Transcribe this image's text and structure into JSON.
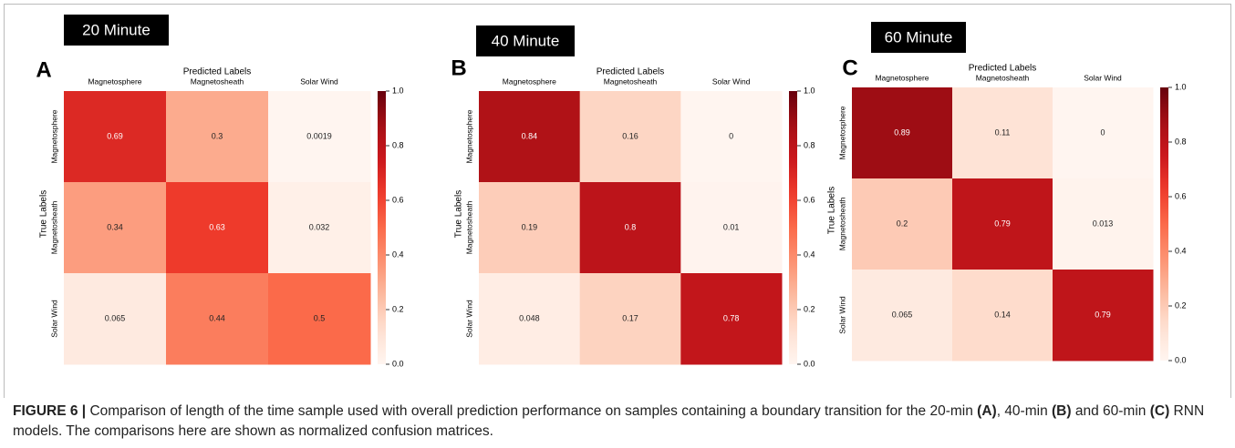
{
  "chart_data": [
    {
      "type": "heatmap",
      "panel": "A",
      "title": "20 Minute",
      "x_label": "Predicted Labels",
      "y_label": "True Labels",
      "x_categories": [
        "Magnetosphere",
        "Magnetosheath",
        "Solar Wind"
      ],
      "y_categories": [
        "Magnetosphere",
        "Magnetosheath",
        "Solar Wind"
      ],
      "values": [
        [
          0.69,
          0.3,
          0.0019
        ],
        [
          0.34,
          0.63,
          0.032
        ],
        [
          0.065,
          0.44,
          0.5
        ]
      ],
      "colormap": "Reds",
      "clim": [
        0,
        1
      ],
      "cticks": [
        {
          "value": 0,
          "label": "0.0"
        },
        0.2,
        0.4,
        0.6,
        0.8,
        {
          "value": 1,
          "label": "1.0"
        }
      ]
    },
    {
      "type": "heatmap",
      "panel": "B",
      "title": "40 Minute",
      "x_label": "Predicted Labels",
      "y_label": "True Labels",
      "x_categories": [
        "Magnetosphere",
        "Magnetosheath",
        "Solar Wind"
      ],
      "y_categories": [
        "Magnetosphere",
        "Magnetosheath",
        "Solar Wind"
      ],
      "values": [
        [
          0.84,
          0.16,
          0
        ],
        [
          0.19,
          0.8,
          0.01
        ],
        [
          0.048,
          0.17,
          0.78
        ]
      ],
      "colormap": "Reds",
      "clim": [
        0,
        1
      ],
      "cticks": [
        {
          "value": 0,
          "label": "0.0"
        },
        0.2,
        0.4,
        0.6,
        0.8,
        {
          "value": 1,
          "label": "1.0"
        }
      ]
    },
    {
      "type": "heatmap",
      "panel": "C",
      "title": "60 Minute",
      "x_label": "Predicted Labels",
      "y_label": "True Labels",
      "x_categories": [
        "Magnetosphere",
        "Magnetosheath",
        "Solar Wind"
      ],
      "y_categories": [
        "Magnetosphere",
        "Magnetosheath",
        "Solar Wind"
      ],
      "values": [
        [
          0.89,
          0.11,
          0
        ],
        [
          0.2,
          0.79,
          0.013
        ],
        [
          0.065,
          0.14,
          0.79
        ]
      ],
      "colormap": "Reds",
      "clim": [
        0,
        1
      ],
      "cticks": [
        {
          "value": 0,
          "label": "0.0"
        },
        0.2,
        0.4,
        0.6,
        0.8,
        {
          "value": 1,
          "label": "1.0"
        }
      ]
    }
  ],
  "caption": [
    "FIGURE 6 |",
    " Comparison of length of the time sample used with overall prediction performance on samples containing a boundary transition for the 20-min ",
    "(A)",
    ", 40-min ",
    "(B)",
    " and 60-min ",
    "(C)",
    " RNN models. The comparisons here are shown as normalized confusion matrices."
  ]
}
